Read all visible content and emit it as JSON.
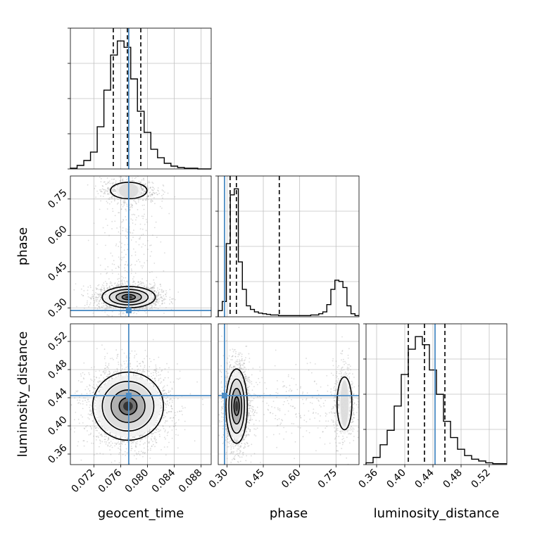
{
  "chart_data": {
    "type": "corner",
    "parameters": [
      "geocent_time",
      "phase",
      "luminosity_distance"
    ],
    "truth": {
      "geocent_time": 0.0772,
      "phase": 0.29,
      "luminosity_distance": 0.443
    },
    "colors": {
      "truth": "#4c8cc4",
      "hist": "#000000",
      "grid": "#c0c0c0",
      "scatter": "#9a9a9a"
    },
    "grid": true,
    "quantiles": {
      "geocent_time": [
        0.0749,
        0.077,
        0.079
      ],
      "phase": [
        0.313,
        0.339,
        0.516
      ],
      "luminosity_distance": [
        0.405,
        0.428,
        0.457
      ]
    },
    "axes": {
      "geocent_time": {
        "range": [
          0.0685,
          0.0895
        ],
        "ticks": [
          0.072,
          0.076,
          0.08,
          0.084,
          0.088
        ],
        "tick_labels": [
          "0.072",
          "0.076",
          "0.080",
          "0.084",
          "0.088"
        ]
      },
      "phase": {
        "range": [
          0.264,
          0.845
        ],
        "ticks": [
          0.3,
          0.45,
          0.6,
          0.75
        ],
        "tick_labels": [
          "0.30",
          "0.45",
          "0.60",
          "0.75"
        ]
      },
      "luminosity_distance": {
        "range": [
          0.345,
          0.545
        ],
        "ticks": [
          0.36,
          0.4,
          0.44,
          0.48,
          0.52
        ],
        "tick_labels": [
          "0.36",
          "0.40",
          "0.44",
          "0.48",
          "0.52"
        ]
      }
    },
    "histograms": {
      "geocent_time": {
        "bin_edges": [
          0.0685,
          0.0695,
          0.0705,
          0.0715,
          0.0725,
          0.0735,
          0.0745,
          0.0755,
          0.0765,
          0.0775,
          0.0785,
          0.0795,
          0.0805,
          0.0815,
          0.0825,
          0.0835,
          0.0845,
          0.0855,
          0.0865,
          0.0875,
          0.0885,
          0.0895
        ],
        "counts": [
          1,
          5,
          12,
          24,
          60,
          112,
          162,
          182,
          173,
          128,
          82,
          52,
          28,
          16,
          8,
          4,
          2,
          1,
          1,
          0,
          0
        ]
      },
      "phase": {
        "bin_edges": [
          0.264,
          0.2806,
          0.2972,
          0.3138,
          0.3304,
          0.347,
          0.3636,
          0.3802,
          0.3968,
          0.4134,
          0.43,
          0.4466,
          0.4632,
          0.4798,
          0.4964,
          0.513,
          0.5296,
          0.5462,
          0.5628,
          0.5794,
          0.596,
          0.6126,
          0.6292,
          0.6458,
          0.6624,
          0.679,
          0.6956,
          0.7122,
          0.7288,
          0.7454,
          0.762,
          0.7786,
          0.7952,
          0.8118,
          0.8284,
          0.845
        ],
        "counts": [
          10,
          25,
          120,
          200,
          210,
          90,
          45,
          18,
          12,
          8,
          6,
          5,
          4,
          3,
          3,
          2,
          2,
          2,
          2,
          2,
          2,
          2,
          2,
          3,
          3,
          5,
          8,
          20,
          45,
          60,
          58,
          48,
          18,
          5,
          2
        ]
      },
      "luminosity_distance": {
        "bin_edges": [
          0.345,
          0.355,
          0.365,
          0.375,
          0.385,
          0.395,
          0.405,
          0.415,
          0.425,
          0.435,
          0.445,
          0.455,
          0.465,
          0.475,
          0.485,
          0.495,
          0.505,
          0.515,
          0.525,
          0.535,
          0.545
        ],
        "counts": [
          2,
          8,
          22,
          38,
          65,
          100,
          128,
          142,
          133,
          105,
          78,
          48,
          30,
          17,
          10,
          6,
          4,
          2,
          1,
          1
        ]
      }
    },
    "density_2d": {
      "geocent_time_vs_phase": {
        "modes": [
          {
            "center": [
              0.0772,
              0.345
            ],
            "spread": [
              0.0018,
              0.02
            ],
            "weight": 0.78
          },
          {
            "center": [
              0.0772,
              0.785
            ],
            "spread": [
              0.0016,
              0.02
            ],
            "weight": 0.22
          }
        ]
      },
      "geocent_time_vs_luminosity_distance": {
        "modes": [
          {
            "center": [
              0.0771,
              0.428
            ],
            "spread": [
              0.0024,
              0.022
            ],
            "weight": 1.0
          }
        ]
      },
      "phase_vs_luminosity_distance": {
        "modes": [
          {
            "center": [
              0.34,
              0.428
            ],
            "spread": [
              0.02,
              0.024
            ],
            "weight": 0.78
          },
          {
            "center": [
              0.785,
              0.432
            ],
            "spread": [
              0.018,
              0.022
            ],
            "weight": 0.22
          }
        ]
      }
    }
  }
}
